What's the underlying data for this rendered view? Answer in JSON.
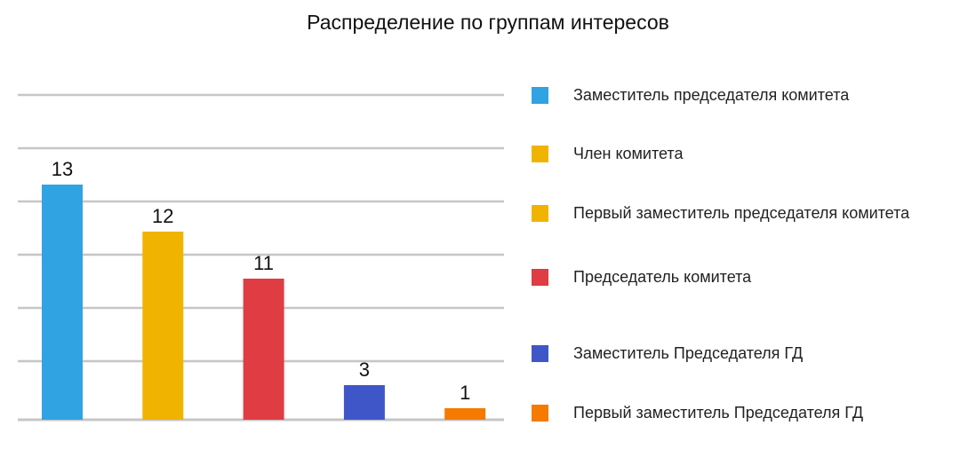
{
  "chart_data": {
    "type": "bar",
    "title": "Распределение по группам интересов",
    "categories": [
      "Заместитель председателя комитета",
      "Член комитета",
      "Первый заместитель председателя комитета",
      "Председатель комитета",
      "Заместитель Председателя ГД",
      "Первый заместитель Председателя ГД"
    ],
    "bars": [
      {
        "category": "Заместитель председателя комитета",
        "value": 13,
        "label": "13",
        "color": "#30a3e3"
      },
      {
        "category": "Член комитета",
        "value": 12,
        "label": "12",
        "color": "#f0b400"
      },
      {
        "category": "Председатель комитета",
        "value": 11,
        "label": "11",
        "color": "#e03c43"
      },
      {
        "category": "Заместитель Председателя ГД",
        "value": 3,
        "label": "3",
        "color": "#3f56c9"
      },
      {
        "category": "Первый заместитель Председателя ГД",
        "value": 1,
        "label": "1",
        "color": "#f57a00"
      }
    ],
    "legend": [
      {
        "label": "Заместитель председателя комитета",
        "color": "#30a3e3"
      },
      {
        "label": "Член комитета",
        "color": "#f0b400"
      },
      {
        "label": "Первый заместитель председателя комитета",
        "color": "#f0b400"
      },
      {
        "label": "Председатель комитета",
        "color": "#e03c43"
      },
      {
        "label": "Заместитель Председателя ГД",
        "color": "#3f56c9"
      },
      {
        "label": "Первый заместитель Председателя ГД",
        "color": "#f57a00"
      }
    ],
    "legend_position": "right",
    "grid": true,
    "xlabel": "",
    "ylabel": ""
  }
}
